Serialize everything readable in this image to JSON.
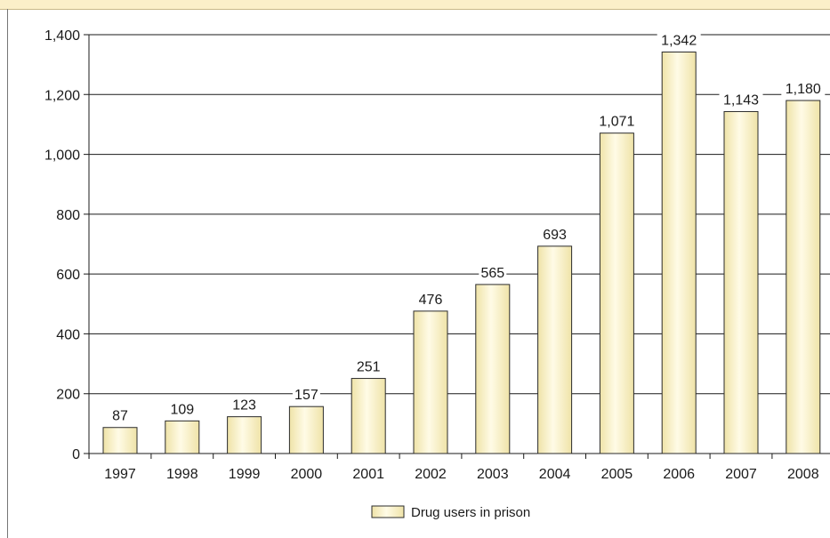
{
  "chart_data": {
    "type": "bar",
    "categories": [
      "1997",
      "1998",
      "1999",
      "2000",
      "2001",
      "2002",
      "2003",
      "2004",
      "2005",
      "2006",
      "2007",
      "2008"
    ],
    "series": [
      {
        "name": "Drug users in prison",
        "values": [
          87,
          109,
          123,
          157,
          251,
          476,
          565,
          693,
          1071,
          1342,
          1143,
          1180
        ],
        "value_labels": [
          "87",
          "109",
          "123",
          "157",
          "251",
          "476",
          "565",
          "693",
          "1,071",
          "1,342",
          "1,143",
          "1,180"
        ]
      }
    ],
    "yticks": [
      0,
      200,
      400,
      600,
      800,
      1000,
      1200,
      1400
    ],
    "ytick_labels": [
      "0",
      "200",
      "400",
      "600",
      "800",
      "1,000",
      "1,200",
      "1,400"
    ],
    "ylim": [
      0,
      1400
    ],
    "grid": true,
    "legend": "bottom-center",
    "colors": {
      "bar_top": "#fffbe6",
      "bar_bottom": "#efe3a8",
      "bar_stroke": "#2b2b2b",
      "grid": "#1a1a1a",
      "header": "#fbefc9"
    }
  }
}
